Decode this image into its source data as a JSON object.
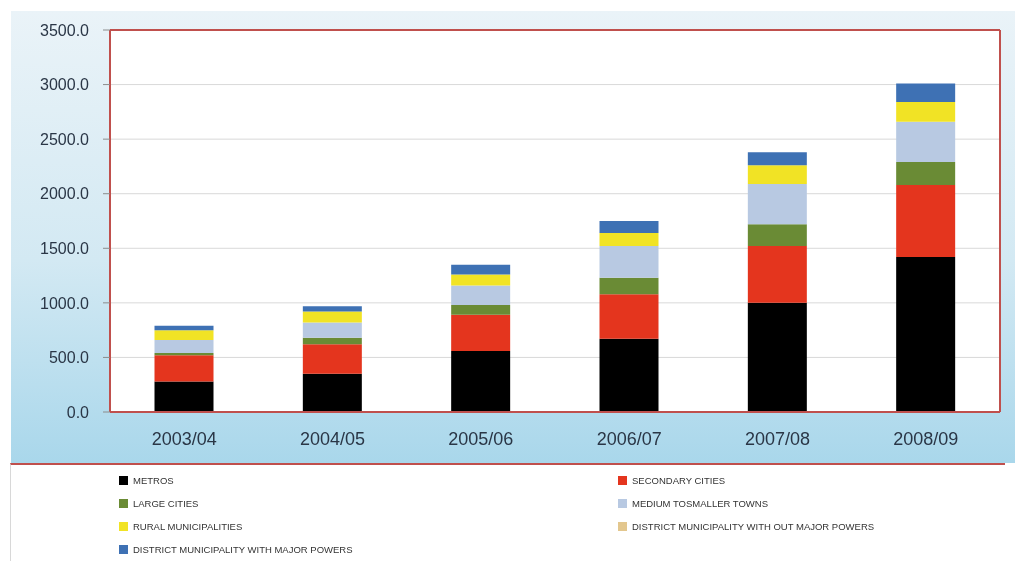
{
  "chart_data": {
    "type": "bar",
    "stacked": true,
    "categories": [
      "2003/04",
      "2004/05",
      "2005/06",
      "2006/07",
      "2007/08",
      "2008/09"
    ],
    "series": [
      {
        "name": "METROS",
        "color": "#000000",
        "values": [
          280,
          350,
          560,
          670,
          1000,
          1420
        ]
      },
      {
        "name": "SECONDARY CITIES",
        "color": "#e4351e",
        "values": [
          240,
          270,
          330,
          410,
          520,
          660
        ]
      },
      {
        "name": "LARGE CITIES",
        "color": "#6a8b35",
        "values": [
          20,
          60,
          90,
          150,
          200,
          210
        ]
      },
      {
        "name": "MEDIUM TOSMALLER TOWNS",
        "color": "#b8c9e2",
        "values": [
          120,
          140,
          180,
          290,
          370,
          370
        ]
      },
      {
        "name": "RURAL MUNICIPALITIES",
        "color": "#f1e325",
        "values": [
          90,
          100,
          100,
          120,
          170,
          180
        ]
      },
      {
        "name": "DISTRICT MUNICIPALITY WITH OUT MAJOR POWERS",
        "color": "#e3c78e",
        "values": [
          0,
          0,
          0,
          0,
          0,
          0
        ]
      },
      {
        "name": "DISTRICT MUNICIPALITY WITH MAJOR POWERS",
        "color": "#3e71b4",
        "values": [
          40,
          50,
          90,
          110,
          120,
          170
        ]
      }
    ],
    "ylim": [
      0,
      3500
    ],
    "yticks": [
      {
        "value": 0,
        "label": "0.0"
      },
      {
        "value": 500,
        "label": "500.0"
      },
      {
        "value": 1000,
        "label": "1000.0"
      },
      {
        "value": 1500,
        "label": "1500.0"
      },
      {
        "value": 2000,
        "label": "2000.0"
      },
      {
        "value": 2500,
        "label": "2500.0"
      },
      {
        "value": 3000,
        "label": "3000.0"
      },
      {
        "value": 3500,
        "label": "3500.0"
      }
    ],
    "grid": "y",
    "legend": "bottom"
  }
}
